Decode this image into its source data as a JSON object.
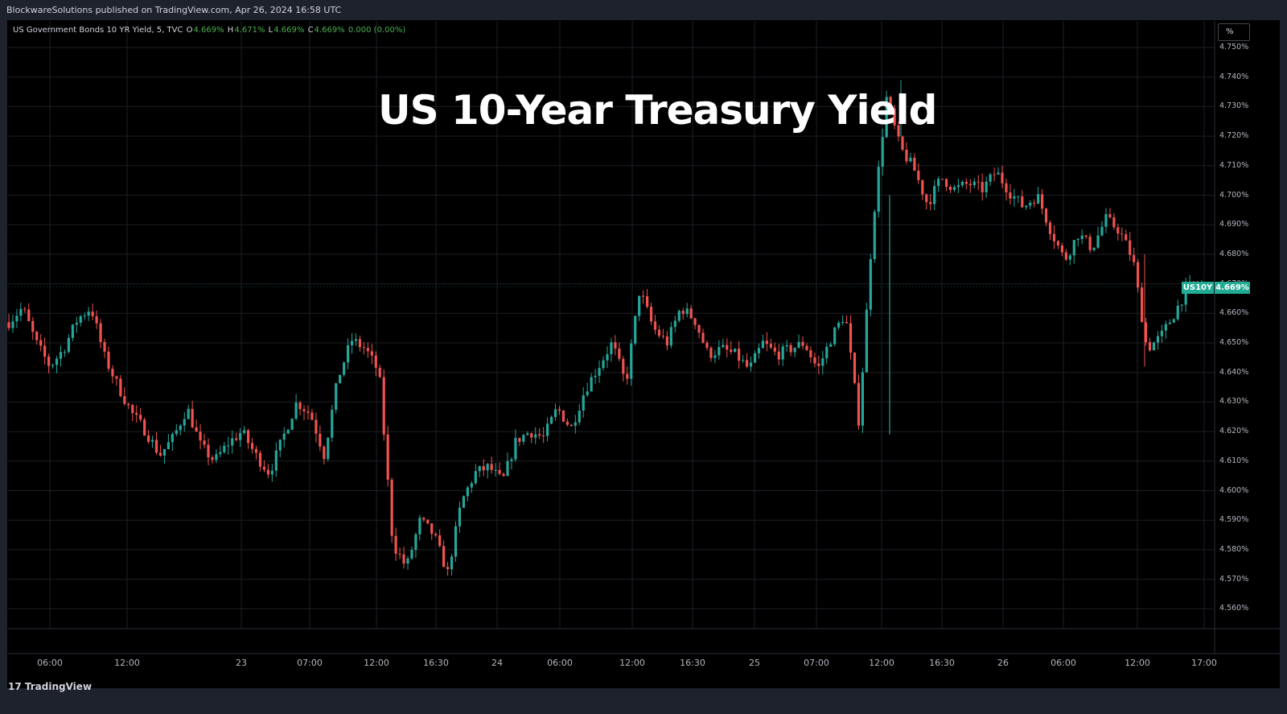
{
  "header": {
    "publisher": "BlockwareSolutions published on TradingView.com, Apr 26, 2024 16:58 UTC"
  },
  "legend": {
    "symbol": "US Government Bonds 10 YR Yield, 5, TVC",
    "o_label": "O",
    "o_value": "4.669%",
    "h_label": "H",
    "h_value": "4.671%",
    "l_label": "L",
    "l_value": "4.669%",
    "c_label": "C",
    "c_value": "4.669%",
    "change": "0.000 (0.00%)"
  },
  "scale_button": "%",
  "last_price": {
    "symbol": "US10Y",
    "value": "4.669%"
  },
  "footer": {
    "brand": "TradingView",
    "brand_glyph": "17"
  },
  "colors": {
    "up": "#26a69a",
    "down": "#ef5350",
    "tag": "#22ab94",
    "grid": "#1c1f26",
    "background": "#000000"
  },
  "chart_data": {
    "type": "candlestick",
    "title": "US 10-Year Treasury Yield",
    "ylabel": "%",
    "ylim": [
      4.553,
      4.753
    ],
    "y_ticks": [
      "4.750%",
      "4.740%",
      "4.730%",
      "4.720%",
      "4.710%",
      "4.700%",
      "4.690%",
      "4.680%",
      "4.670%",
      "4.660%",
      "4.650%",
      "4.640%",
      "4.630%",
      "4.620%",
      "4.610%",
      "4.600%",
      "4.590%",
      "4.580%",
      "4.570%",
      "4.560%"
    ],
    "x_ticks": [
      "06:00",
      "12:00",
      "23",
      "07:00",
      "12:00",
      "16:30",
      "24",
      "06:00",
      "12:00",
      "16:30",
      "25",
      "07:00",
      "12:00",
      "16:30",
      "26",
      "06:00",
      "12:00",
      "17:00"
    ],
    "grid": true,
    "series": [
      {
        "name": "US10Y",
        "path_close": [
          4.657,
          4.662,
          4.65,
          4.642,
          4.648,
          4.658,
          4.662,
          4.645,
          4.635,
          4.626,
          4.62,
          4.612,
          4.618,
          4.628,
          4.615,
          4.61,
          4.616,
          4.62,
          4.612,
          4.606,
          4.618,
          4.63,
          4.626,
          4.612,
          4.638,
          4.651,
          4.648,
          4.64,
          4.582,
          4.574,
          4.59,
          4.585,
          4.572,
          4.596,
          4.606,
          4.608,
          4.603,
          4.617,
          4.62,
          4.618,
          4.628,
          4.621,
          4.634,
          4.642,
          4.65,
          4.636,
          4.668,
          4.655,
          4.65,
          4.662,
          4.658,
          4.646,
          4.648,
          4.646,
          4.641,
          4.65,
          4.646,
          4.648,
          4.65,
          4.641,
          4.652,
          4.66,
          4.623,
          4.69,
          4.733,
          4.716,
          4.709,
          4.697,
          4.706,
          4.702,
          4.704,
          4.702,
          4.708,
          4.701,
          4.696,
          4.7,
          4.688,
          4.678,
          4.687,
          4.682,
          4.692,
          4.688,
          4.678,
          4.648,
          4.652,
          4.66,
          4.669,
          4.669
        ],
        "last": 4.669
      }
    ]
  }
}
